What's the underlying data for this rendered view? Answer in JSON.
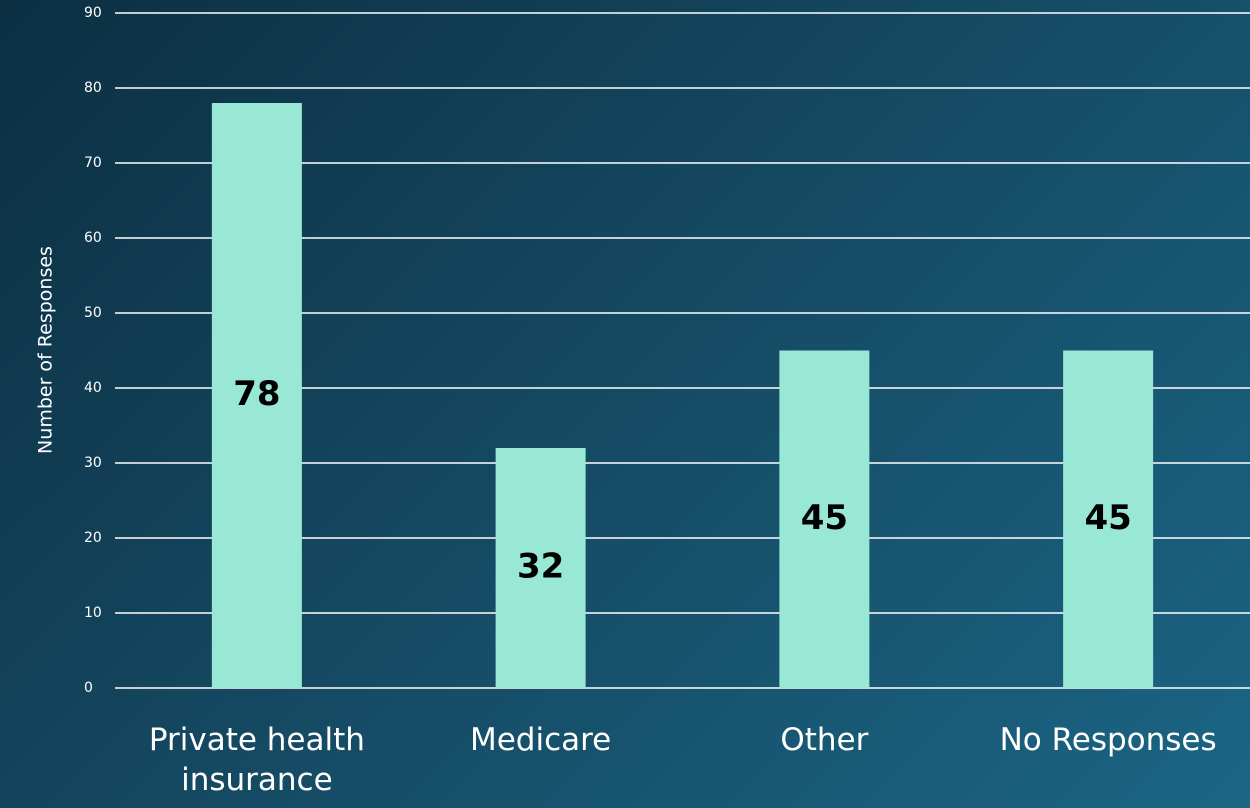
{
  "chart_data": {
    "type": "bar",
    "y_label": "Number of Responses",
    "categories": [
      "Private health insurance",
      "Medicare",
      "Other",
      "No Responses"
    ],
    "values": [
      78,
      32,
      45,
      45
    ],
    "color": "#99e8d6",
    "ylim": [
      0,
      90
    ],
    "yticks": [
      0,
      10,
      20,
      30,
      40,
      50,
      60,
      70,
      80,
      90
    ],
    "grid": true
  }
}
